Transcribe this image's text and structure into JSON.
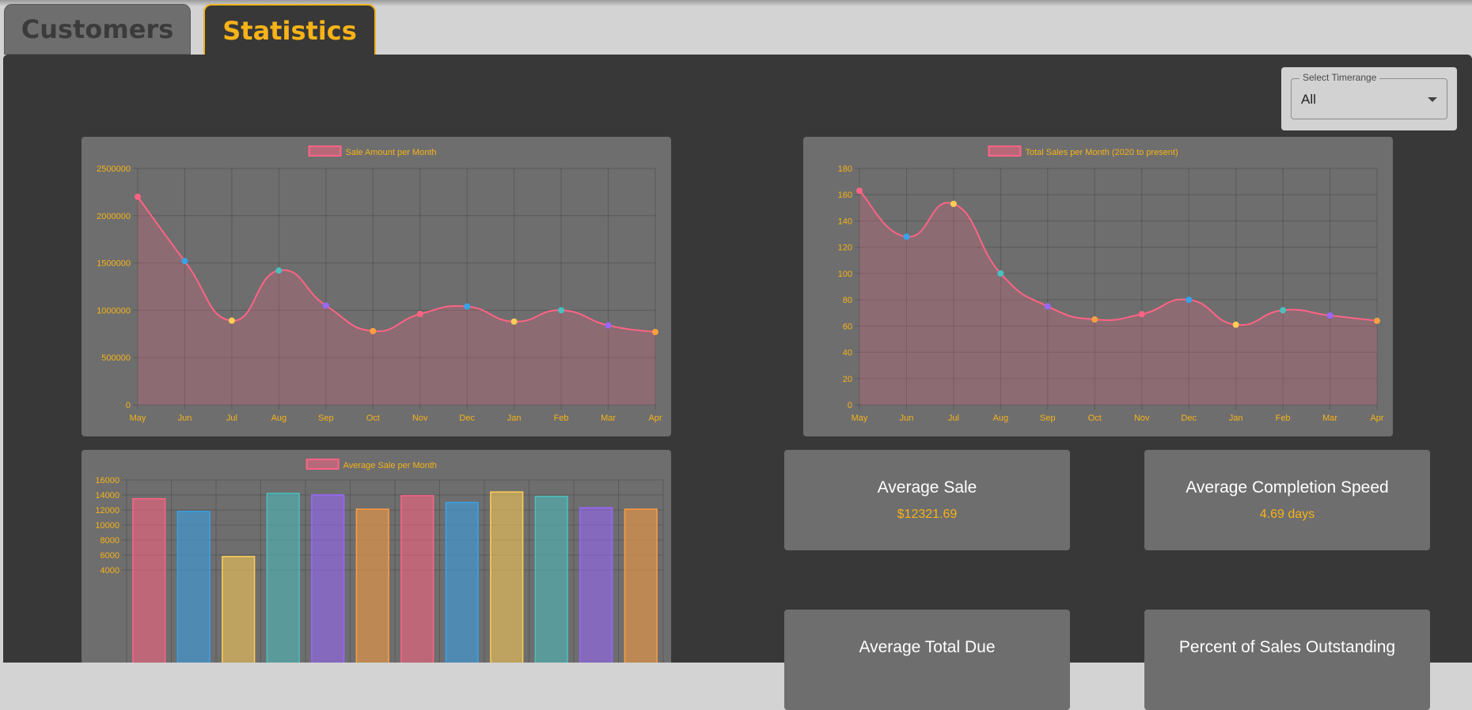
{
  "tabs": {
    "customers": "Customers",
    "statistics": "Statistics"
  },
  "timerange": {
    "label": "Select Timerange",
    "value": "All"
  },
  "colors": {
    "accent": "#f7b318",
    "line": "#ff6384",
    "panel": "#383838",
    "card": "#6e6e6e"
  },
  "chart_data": [
    {
      "type": "line",
      "legend": "Sale Amount per Month",
      "categories": [
        "May",
        "Jun",
        "Jul",
        "Aug",
        "Sep",
        "Oct",
        "Nov",
        "Dec",
        "Jan",
        "Feb",
        "Mar",
        "Apr"
      ],
      "values": [
        2200000,
        1520000,
        890000,
        1420000,
        1050000,
        780000,
        960000,
        1040000,
        880000,
        1000000,
        840000,
        770000
      ],
      "y_ticks": [
        "2500000",
        "2000000",
        "1500000",
        "1000000",
        "500000",
        "0"
      ],
      "ylim": [
        0,
        2500000
      ],
      "grid": true,
      "legend_position": "top"
    },
    {
      "type": "line",
      "legend": "Total Sales per Month (2020 to present)",
      "categories": [
        "May",
        "Jun",
        "Jul",
        "Aug",
        "Sep",
        "Oct",
        "Nov",
        "Dec",
        "Jan",
        "Feb",
        "Mar",
        "Apr"
      ],
      "values": [
        163,
        128,
        153,
        100,
        75,
        65,
        69,
        80,
        61,
        72,
        68,
        64
      ],
      "y_ticks": [
        "180",
        "160",
        "140",
        "120",
        "100",
        "80",
        "60",
        "40",
        "20",
        "0"
      ],
      "ylim": [
        0,
        180
      ],
      "grid": true,
      "legend_position": "top"
    },
    {
      "type": "bar",
      "legend": "Average Sale per Month",
      "values": [
        13500,
        11800,
        5800,
        14200,
        14000,
        12100,
        13900,
        13000,
        14400,
        13800,
        12300,
        12100
      ],
      "y_ticks": [
        "16000",
        "14000",
        "12000",
        "10000",
        "8000",
        "6000",
        "4000"
      ],
      "ylim": [
        0,
        16000
      ],
      "grid": true,
      "legend_position": "top"
    }
  ],
  "stats": [
    {
      "title": "Average Sale",
      "value": "$12321.69"
    },
    {
      "title": "Average Completion Speed",
      "value": "4.69 days"
    },
    {
      "title": "Average Total Due",
      "value": ""
    },
    {
      "title": "Percent of Sales Outstanding",
      "value": ""
    }
  ]
}
